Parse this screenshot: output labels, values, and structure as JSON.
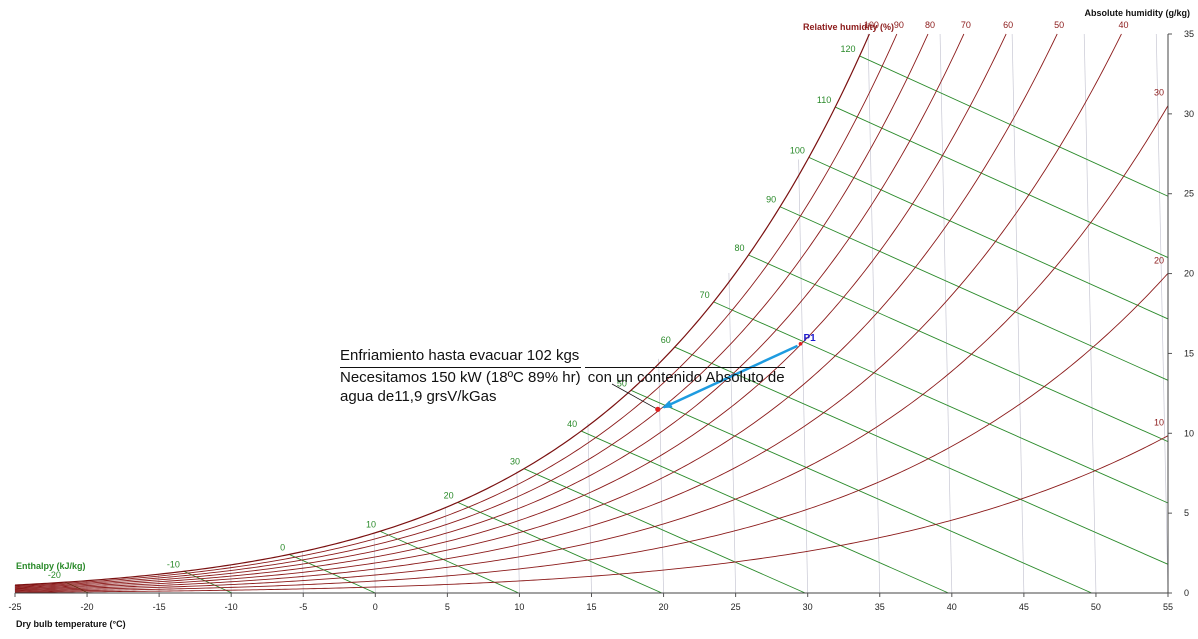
{
  "chart_data": {
    "type": "line",
    "title": "",
    "xlabel": "Dry bulb temperature (°C)",
    "ylabel": "Absolute humidity (g/kg)",
    "rh_label": "Relative humidity (%)",
    "enthalpy_label": "Enthalpy (kJ/kg)",
    "xlim": [
      -25,
      55
    ],
    "ylim": [
      0,
      35
    ],
    "x_ticks": [
      -25,
      -20,
      -15,
      -10,
      -5,
      0,
      5,
      10,
      15,
      20,
      25,
      30,
      35,
      40,
      45,
      50,
      55
    ],
    "y_ticks": [
      0,
      5,
      10,
      15,
      20,
      25,
      30,
      35
    ],
    "relative_humidity_curves": [
      10,
      20,
      30,
      40,
      50,
      60,
      70,
      80,
      90,
      100
    ],
    "rh_top_labels": [
      "100",
      "90",
      "80",
      "70",
      "60",
      "50",
      "40"
    ],
    "rh_right_labels": [
      "30",
      "20",
      "10"
    ],
    "enthalpy_lines": [
      -20,
      -10,
      0,
      10,
      20,
      30,
      40,
      50,
      60,
      70,
      80,
      90,
      100,
      110,
      120
    ],
    "grid": true,
    "colors": {
      "rh": "#8b1a1a",
      "enthalpy": "#2a8a2a",
      "grid": "#c8c8d4",
      "arrow": "#1e9be0",
      "point": "#e02020",
      "p1": "#1a1ad0"
    },
    "points": [
      {
        "label": "P1",
        "x": 29.5,
        "y": 15.6
      },
      {
        "label": "",
        "x": 19.6,
        "y": 11.5
      }
    ]
  },
  "annotation": {
    "line1": "Enfriamiento hasta evacuar 102 kgs",
    "line2": "Necesitamos 150 kW (18ºC 89% hr)",
    "line3": "con un contenido Absoluto de",
    "line4": "agua de11,9 grsV/kGas"
  }
}
